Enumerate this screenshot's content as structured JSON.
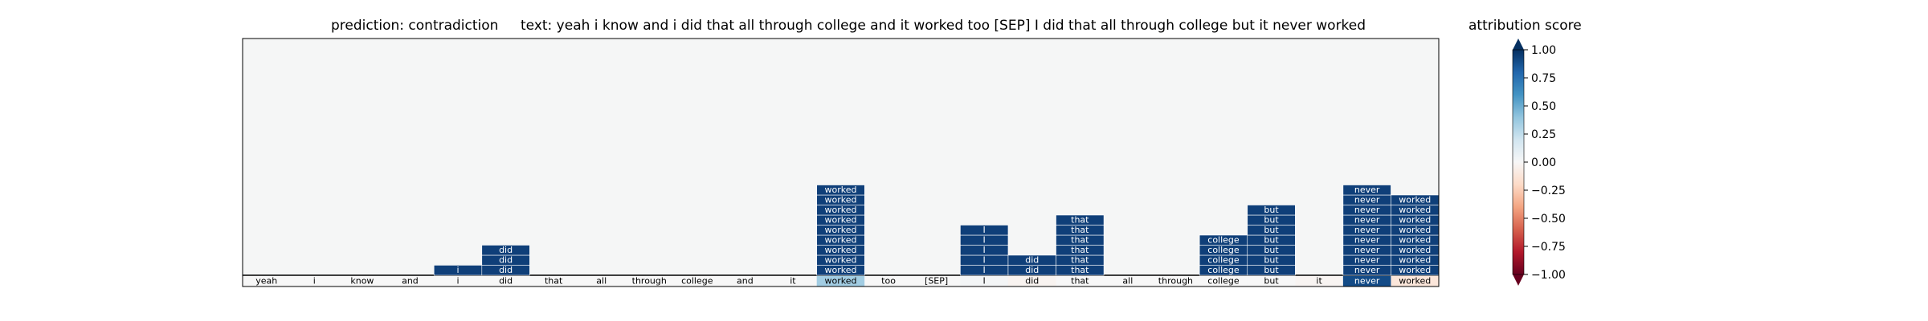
{
  "header": {
    "prediction": "prediction:  contradiction",
    "text": "text:  yeah i know and i did that all through college and it worked too [SEP] I did that all through college but it never worked"
  },
  "colorbar": {
    "title": "attribution score",
    "ticks": [
      "1.00",
      "0.75",
      "0.50",
      "0.25",
      "0.00",
      "−0.25",
      "−0.50",
      "−0.75",
      "−1.00"
    ],
    "tick_values": [
      1.0,
      0.75,
      0.5,
      0.25,
      0.0,
      -0.25,
      -0.5,
      -0.75,
      -1.0
    ],
    "colormap": "RdBu",
    "extend": "both",
    "range": [
      -1.0,
      1.0
    ]
  },
  "chart_data": {
    "type": "heatmap",
    "title": "prediction:  contradiction     text:  yeah i know and i did that all through college and it worked too [SEP] I did that all through college but it never worked",
    "tokens": [
      "yeah",
      "i",
      "know",
      "and",
      "i",
      "did",
      "that",
      "all",
      "through",
      "college",
      "and",
      "it",
      "worked",
      "too",
      "[SEP]",
      "I",
      "did",
      "that",
      "all",
      "through",
      "college",
      "but",
      "it",
      "never",
      "worked"
    ],
    "token_scores": [
      0.0,
      0.0,
      0.0,
      0.0,
      0.0,
      0.0,
      0.0,
      0.0,
      0.0,
      0.0,
      0.0,
      0.0,
      0.35,
      0.0,
      0.0,
      0.02,
      -0.03,
      0.0,
      0.0,
      0.0,
      0.0,
      0.0,
      -0.02,
      0.9,
      -0.12
    ],
    "background_color": "#f5f6f6",
    "cell_color": "#0f3f79",
    "stacks": [
      {
        "col": 4,
        "cells": [
          "i"
        ]
      },
      {
        "col": 5,
        "cells": [
          "did",
          "did",
          "did"
        ]
      },
      {
        "col": 12,
        "cells": [
          "worked",
          "worked",
          "worked",
          "worked",
          "worked",
          "worked",
          "worked",
          "worked",
          "worked"
        ]
      },
      {
        "col": 15,
        "cells": [
          "I",
          "I",
          "I",
          "I",
          "I"
        ]
      },
      {
        "col": 16,
        "cells": [
          "did",
          "did"
        ]
      },
      {
        "col": 17,
        "cells": [
          "that",
          "that",
          "that",
          "that",
          "that",
          "that"
        ]
      },
      {
        "col": 20,
        "cells": [
          "college",
          "college",
          "college",
          "college"
        ]
      },
      {
        "col": 21,
        "cells": [
          "but",
          "but",
          "but",
          "but",
          "but",
          "but",
          "but"
        ]
      },
      {
        "col": 23,
        "cells": [
          "never",
          "never",
          "never",
          "never",
          "never",
          "never",
          "never",
          "never",
          "never"
        ]
      },
      {
        "col": 24,
        "cells": [
          "worked",
          "worked",
          "worked",
          "worked",
          "worked",
          "worked",
          "worked",
          "worked"
        ]
      }
    ],
    "grid": false,
    "legend": "colorbar-right"
  }
}
